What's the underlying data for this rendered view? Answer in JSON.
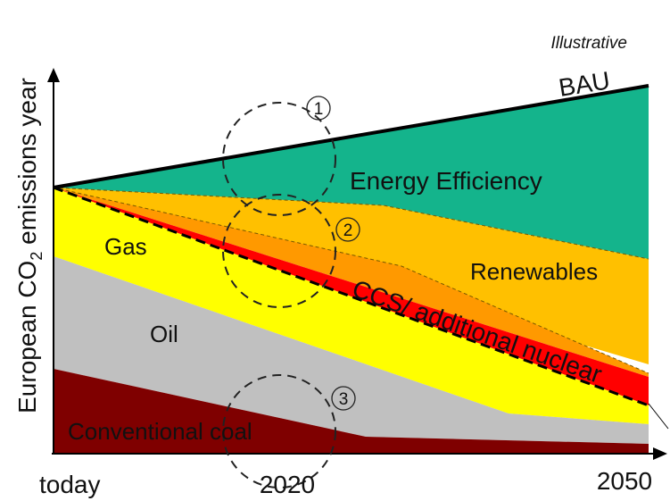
{
  "chart_data": {
    "type": "area",
    "annotation": "Illustrative",
    "ylabel_parts": {
      "pre": "European CO",
      "sub": "2",
      "post": " emissions year"
    },
    "x_ticks": [
      "today",
      "2020",
      "2050"
    ],
    "areas": [
      {
        "name": "Energy Efficiency",
        "color": "#14b48c"
      },
      {
        "name": "Renewables",
        "color": "#ffc000"
      },
      {
        "name": "CCS/ additional nuclear",
        "color": "#ff0000"
      },
      {
        "name": "Gas",
        "color": "#ffff00"
      },
      {
        "name": "Oil",
        "color": "#c0c0c0"
      },
      {
        "name": "Conventional coal",
        "color": "#7f0000"
      }
    ],
    "line_labels": [
      "BAU"
    ],
    "markers": [
      "1",
      "2",
      "3"
    ]
  }
}
